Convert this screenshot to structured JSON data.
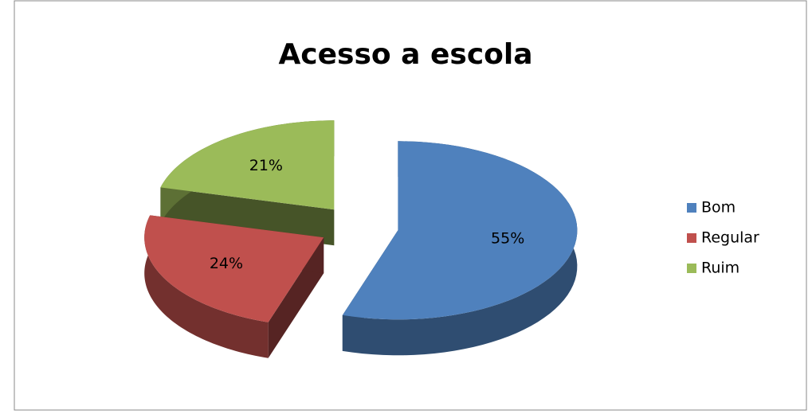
{
  "chart_data": {
    "type": "pie",
    "title": "Acesso a escola",
    "categories": [
      "Bom",
      "Regular",
      "Ruim"
    ],
    "values": [
      55,
      24,
      21
    ],
    "value_labels": [
      "55%",
      "24%",
      "21%"
    ],
    "colors": [
      "#4f81bd",
      "#c0504d",
      "#9bbb59"
    ],
    "legend": "right"
  }
}
